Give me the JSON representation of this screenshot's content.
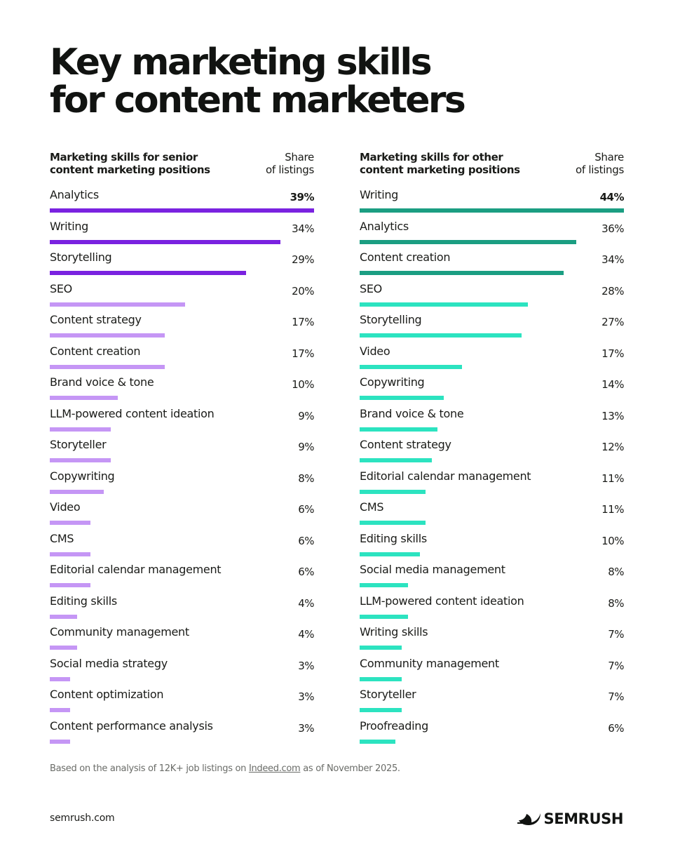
{
  "title_lines": [
    "Key marketing skills",
    "for content marketers"
  ],
  "chart_data": [
    {
      "type": "bar",
      "orientation": "horizontal",
      "header_label_lines": [
        "Marketing skills for senior",
        "content marketing positions"
      ],
      "value_header_lines": [
        "Share",
        "of listings"
      ],
      "categories": [
        "Analytics",
        "Writing",
        "Storytelling",
        "SEO",
        "Content strategy",
        "Content creation",
        "Brand voice & tone",
        "LLM-powered content ideation",
        "Storyteller",
        "Copywriting",
        "Video",
        "CMS",
        "Editorial calendar management",
        "Editing skills",
        "Community management",
        "Social media strategy",
        "Content optimization",
        "Content performance analysis"
      ],
      "values": [
        39,
        34,
        29,
        20,
        17,
        17,
        10,
        9,
        9,
        8,
        6,
        6,
        6,
        4,
        4,
        3,
        3,
        3
      ],
      "value_labels": [
        "39%",
        "34%",
        "29%",
        "20%",
        "17%",
        "17%",
        "10%",
        "9%",
        "9%",
        "8%",
        "6%",
        "6%",
        "6%",
        "4%",
        "4%",
        "3%",
        "3%",
        "3%"
      ],
      "xlim": [
        0,
        39
      ],
      "highlight_count": 3,
      "colors": {
        "highlight": "#7a22e0",
        "other": "#c596f5"
      }
    },
    {
      "type": "bar",
      "orientation": "horizontal",
      "header_label_lines": [
        "Marketing skills for other",
        "content marketing positions"
      ],
      "value_header_lines": [
        "Share",
        "of listings"
      ],
      "categories": [
        "Writing",
        "Analytics",
        "Content creation",
        "SEO",
        "Storytelling",
        "Video",
        "Copywriting",
        "Brand voice & tone",
        "Content strategy",
        "Editorial calendar management",
        "CMS",
        "Editing skills",
        "Social media management",
        "LLM-powered content ideation",
        "Writing skills",
        "Community management",
        "Storyteller",
        "Proofreading"
      ],
      "values": [
        44,
        36,
        34,
        28,
        27,
        17,
        14,
        13,
        12,
        11,
        11,
        10,
        8,
        8,
        7,
        7,
        7,
        6
      ],
      "value_labels": [
        "44%",
        "36%",
        "34%",
        "28%",
        "27%",
        "17%",
        "14%",
        "13%",
        "12%",
        "11%",
        "11%",
        "10%",
        "8%",
        "8%",
        "7%",
        "7%",
        "7%",
        "6%"
      ],
      "xlim": [
        0,
        44
      ],
      "highlight_count": 3,
      "colors": {
        "highlight": "#1b9e82",
        "other": "#2ce3c0"
      }
    }
  ],
  "footnote": {
    "prefix": "Based on the analysis of 12K+ job listings on ",
    "link_text": "Indeed.com",
    "suffix": " as of November 2025."
  },
  "site_url": "semrush.com",
  "brand": {
    "name": "SEMRUSH",
    "icon": "semrush-logo-icon"
  }
}
